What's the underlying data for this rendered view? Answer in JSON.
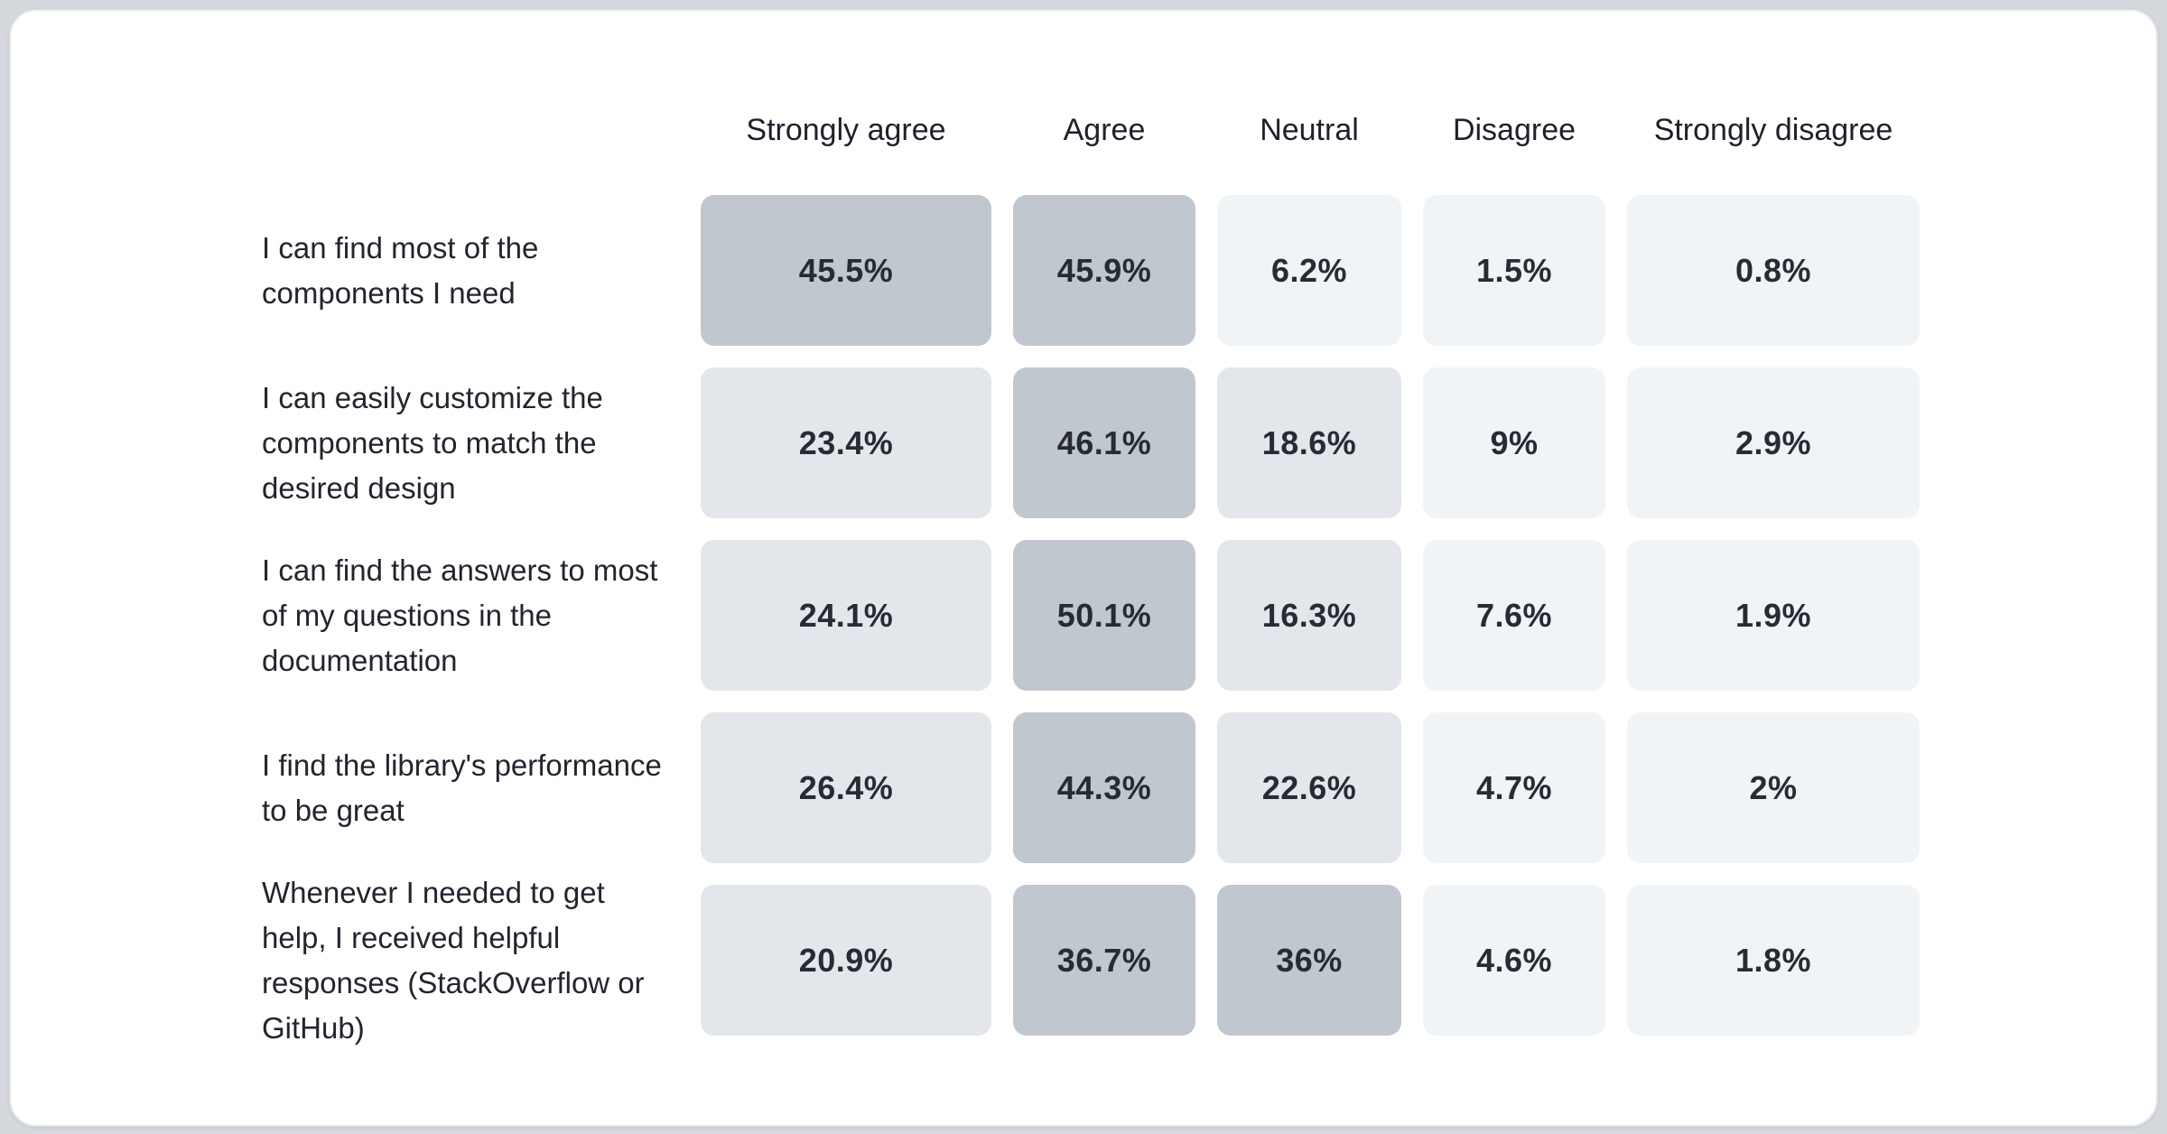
{
  "theme": {
    "page_background": "#d5d8dd",
    "card_background": "#ffffff",
    "card_border": "#e3e5e9",
    "value_text_color": "#272c34",
    "header_text_color": "#1d212a",
    "label_text_color": "#21252e"
  },
  "chart_data": {
    "type": "heatmap",
    "title": "",
    "legend_position": "none",
    "grid": "off",
    "columns": [
      "Strongly agree",
      "Agree",
      "Neutral",
      "Disagree",
      "Strongly disagree"
    ],
    "rows": [
      {
        "label": "I can find most of the components I need",
        "values": [
          "45.5%",
          "45.9%",
          "6.2%",
          "1.5%",
          "0.8%"
        ],
        "values_numeric": [
          45.5,
          45.9,
          6.2,
          1.5,
          0.8
        ]
      },
      {
        "label": "I can easily customize the components to match the desired design",
        "values": [
          "23.4%",
          "46.1%",
          "18.6%",
          "9%",
          "2.9%"
        ],
        "values_numeric": [
          23.4,
          46.1,
          18.6,
          9,
          2.9
        ]
      },
      {
        "label": "I can find the answers to most of my questions in the documentation",
        "values": [
          "24.1%",
          "50.1%",
          "16.3%",
          "7.6%",
          "1.9%"
        ],
        "values_numeric": [
          24.1,
          50.1,
          16.3,
          7.6,
          1.9
        ]
      },
      {
        "label": "I find the library's performance to be great",
        "values": [
          "26.4%",
          "44.3%",
          "22.6%",
          "4.7%",
          "2%"
        ],
        "values_numeric": [
          26.4,
          44.3,
          22.6,
          4.7,
          2
        ]
      },
      {
        "label": "Whenever I needed to get help, I received helpful responses (StackOverflow or GitHub)",
        "values": [
          "20.9%",
          "36.7%",
          "36%",
          "4.6%",
          "1.8%"
        ],
        "values_numeric": [
          20.9,
          36.7,
          36,
          4.6,
          1.8
        ]
      }
    ],
    "heat_scale": {
      "unit": "%",
      "thresholds": [
        {
          "min": 30,
          "color": "#c1c7cf"
        },
        {
          "min": 12,
          "color": "#e3e6ea"
        },
        {
          "min": 0,
          "color": "#f1f4f7"
        }
      ]
    }
  }
}
